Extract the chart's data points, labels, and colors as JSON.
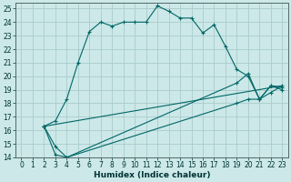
{
  "xlabel": "Humidex (Indice chaleur)",
  "bg_color": "#cce8e8",
  "grid_color": "#aacccc",
  "line_color": "#006666",
  "xlim": [
    -0.5,
    23.5
  ],
  "ylim": [
    14,
    25.4
  ],
  "xticks": [
    0,
    1,
    2,
    3,
    4,
    5,
    6,
    7,
    8,
    9,
    10,
    11,
    12,
    13,
    14,
    15,
    16,
    17,
    18,
    19,
    20,
    21,
    22,
    23
  ],
  "yticks": [
    14,
    15,
    16,
    17,
    18,
    19,
    20,
    21,
    22,
    23,
    24,
    25
  ],
  "line1_x": [
    2,
    3,
    4,
    5,
    6,
    7,
    8,
    9,
    10,
    11,
    12,
    13,
    14,
    15,
    16,
    17,
    18,
    19,
    20,
    21,
    22,
    23
  ],
  "line1_y": [
    16.3,
    16.7,
    18.3,
    21.0,
    23.3,
    24.0,
    23.7,
    24.0,
    24.0,
    24.0,
    25.2,
    24.8,
    24.3,
    24.3,
    23.2,
    23.8,
    22.2,
    20.5,
    20.0,
    18.3,
    19.3,
    19.0
  ],
  "line2_x": [
    2,
    3,
    4,
    19,
    20,
    21,
    22,
    23
  ],
  "line2_y": [
    16.3,
    14.2,
    14.0,
    19.5,
    20.2,
    18.3,
    19.3,
    19.2
  ],
  "line3_x": [
    2,
    3,
    4,
    19,
    20,
    21,
    22,
    23
  ],
  "line3_y": [
    16.3,
    14.8,
    14.0,
    18.0,
    18.3,
    18.3,
    18.8,
    19.3
  ],
  "line4_x": [
    2,
    23
  ],
  "line4_y": [
    16.3,
    19.3
  ],
  "xlabel_fontsize": 6.5,
  "tick_fontsize": 5.5
}
